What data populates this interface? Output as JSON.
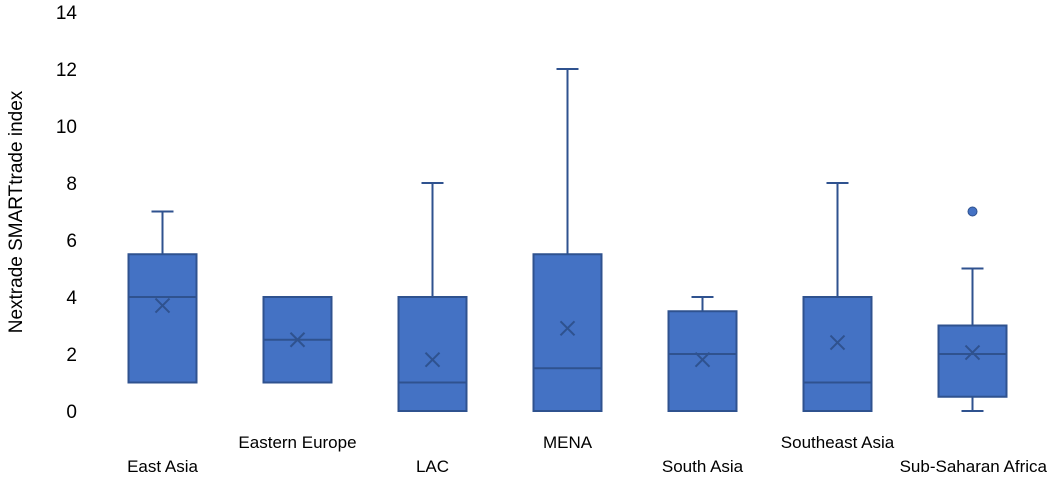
{
  "chart_data": {
    "type": "box",
    "title": "",
    "xlabel": "",
    "ylabel": "Nextrade SMARTtrade index",
    "ylim": [
      0,
      14
    ],
    "yticks": [
      0,
      2,
      4,
      6,
      8,
      10,
      12,
      14
    ],
    "grid": false,
    "legend": "none",
    "color": "#4472C4",
    "stroke_color": "#2F528F",
    "categories": [
      "East Asia",
      "Eastern Europe",
      "LAC",
      "MENA",
      "South Asia",
      "Southeast Asia",
      "Sub-Saharan Africa"
    ],
    "boxes": [
      {
        "category": "East Asia",
        "min": 1,
        "q1": 1,
        "median": 4,
        "q3": 5.5,
        "max": 7,
        "mean": 3.7,
        "outliers": []
      },
      {
        "category": "Eastern Europe",
        "min": 1,
        "q1": 1,
        "median": 2.5,
        "q3": 4,
        "max": 4,
        "mean": 2.5,
        "outliers": []
      },
      {
        "category": "LAC",
        "min": 0,
        "q1": 0,
        "median": 1,
        "q3": 4,
        "max": 8,
        "mean": 1.8,
        "outliers": []
      },
      {
        "category": "MENA",
        "min": 0,
        "q1": 0,
        "median": 1.5,
        "q3": 5.5,
        "max": 12,
        "mean": 2.9,
        "outliers": []
      },
      {
        "category": "South Asia",
        "min": 0,
        "q1": 0,
        "median": 2,
        "q3": 3.5,
        "max": 4,
        "mean": 1.8,
        "outliers": []
      },
      {
        "category": "Southeast Asia",
        "min": 0,
        "q1": 0,
        "median": 1,
        "q3": 4,
        "max": 8,
        "mean": 2.4,
        "outliers": []
      },
      {
        "category": "Sub-Saharan Africa",
        "min": 0,
        "q1": 0.5,
        "median": 2,
        "q3": 3,
        "max": 5,
        "mean": 2.05,
        "outliers": [
          7
        ]
      }
    ]
  }
}
